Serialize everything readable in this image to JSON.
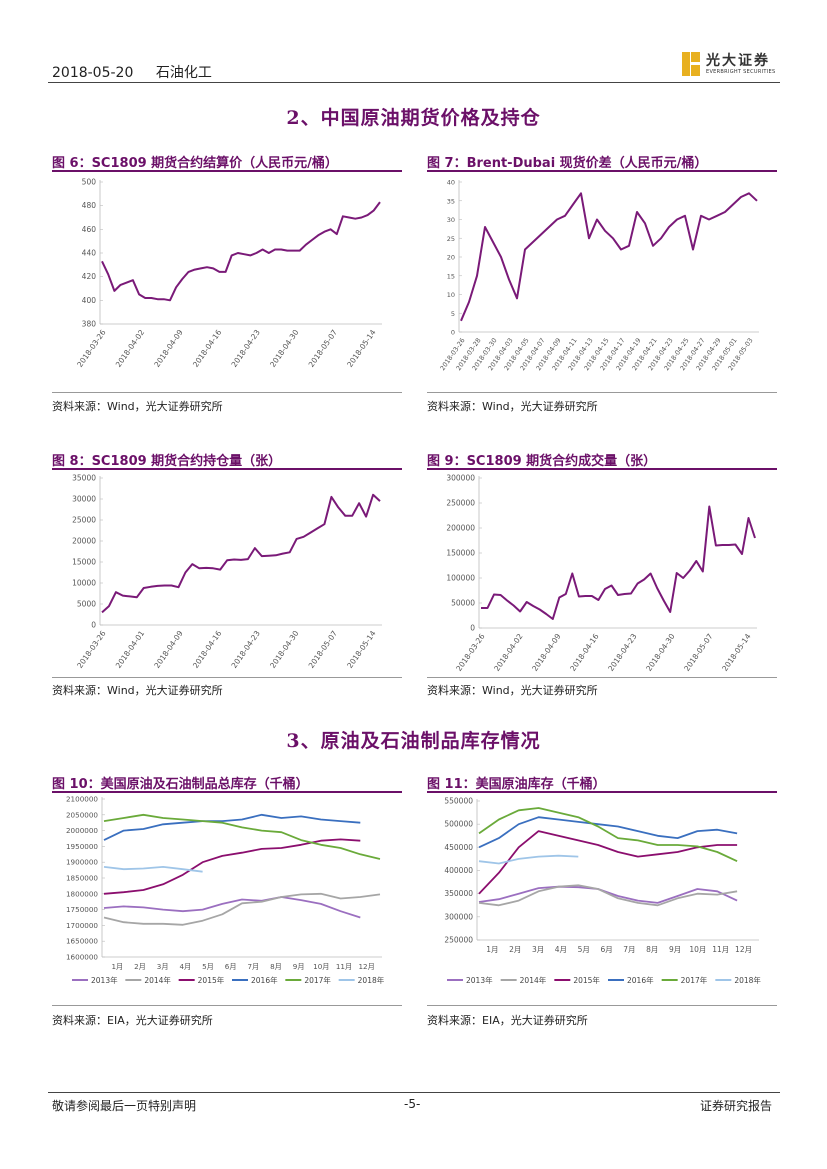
{
  "header": {
    "date": "2018-05-20",
    "sector": "石油化工",
    "brand_cn": "光大证券",
    "brand_en": "EVERBRIGHT SECURITIES"
  },
  "sections": {
    "s2": "2、中国原油期货价格及持仓",
    "s3": "3、原油及石油制品库存情况"
  },
  "figures": {
    "f6": {
      "title": "图 6：SC1809 期货合约结算价（人民币元/桶）",
      "source": "资料来源：Wind，光大证券研究所"
    },
    "f7": {
      "title": "图 7：Brent-Dubai 现货价差（人民币元/桶）",
      "source": "资料来源：Wind，光大证券研究所"
    },
    "f8": {
      "title": "图 8：SC1809 期货合约持仓量（张）",
      "source": "资料来源：Wind，光大证券研究所"
    },
    "f9": {
      "title": "图 9：SC1809 期货合约成交量（张）",
      "source": "资料来源：Wind，光大证券研究所"
    },
    "f10": {
      "title": "图 10：美国原油及石油制品总库存（千桶）",
      "source": "资料来源：EIA，光大证券研究所"
    },
    "f11": {
      "title": "图 11：美国原油库存（千桶）",
      "source": "资料来源：EIA，光大证券研究所"
    }
  },
  "footer": {
    "left": "敬请参阅最后一页特别声明",
    "center": "-5-",
    "right": "证券研究报告"
  },
  "colors": {
    "purple": "#7a1a78",
    "accent": "#6b1068"
  },
  "chart_data": [
    {
      "id": "f6",
      "type": "line",
      "title": "SC1809 期货合约结算价（人民币元/桶）",
      "y_ticks": [
        "380",
        "400",
        "420",
        "440",
        "460",
        "480",
        "500"
      ],
      "ylim": [
        380,
        500
      ],
      "x_ticks": [
        "2018-03-26",
        "2018-04-02",
        "2018-04-09",
        "2018-04-16",
        "2018-04-23",
        "2018-04-30",
        "2018-05-07",
        "2018-05-14"
      ],
      "series": [
        {
          "name": "结算价",
          "color": "#7a1a78",
          "values": [
            433,
            422,
            408,
            413,
            415,
            417,
            405,
            402,
            402,
            401,
            401,
            400,
            411,
            418,
            424,
            426,
            427,
            428,
            427,
            424,
            424,
            438,
            440,
            439,
            438,
            440,
            443,
            440,
            443,
            443,
            442,
            442,
            442,
            447,
            451,
            455,
            458,
            460,
            456,
            471,
            470,
            469,
            470,
            472,
            476,
            483
          ]
        }
      ]
    },
    {
      "id": "f7",
      "type": "line",
      "title": "Brent-Dubai 现货价差（人民币元/桶）",
      "y_ticks": [
        "0",
        "5",
        "10",
        "15",
        "20",
        "25",
        "30",
        "35",
        "40"
      ],
      "ylim": [
        0,
        40
      ],
      "x_ticks": [
        "2018-03-26",
        "2018-03-28",
        "2018-03-30",
        "2018-04-03",
        "2018-04-05",
        "2018-04-07",
        "2018-04-09",
        "2018-04-11",
        "2018-04-13",
        "2018-04-15",
        "2018-04-17",
        "2018-04-19",
        "2018-04-21",
        "2018-04-23",
        "2018-04-25",
        "2018-04-27",
        "2018-04-29",
        "2018-05-01",
        "2018-05-03"
      ],
      "series": [
        {
          "name": "价差",
          "color": "#7a1a78",
          "values": [
            3,
            8,
            15,
            28,
            24,
            20,
            14,
            9,
            22,
            24,
            26,
            28,
            30,
            31,
            34,
            37,
            25,
            30,
            27,
            25,
            22,
            23,
            32,
            29,
            23,
            25,
            28,
            30,
            31,
            22,
            31,
            30,
            31,
            32,
            34,
            36,
            37,
            35
          ]
        }
      ]
    },
    {
      "id": "f8",
      "type": "line",
      "title": "SC1809 期货合约持仓量（张）",
      "y_ticks": [
        "0",
        "5000",
        "10000",
        "15000",
        "20000",
        "25000",
        "30000",
        "35000"
      ],
      "ylim": [
        0,
        35000
      ],
      "x_ticks": [
        "2018-03-26",
        "2018-04-01",
        "2018-04-09",
        "2018-04-16",
        "2018-04-23",
        "2018-04-30",
        "2018-05-07",
        "2018-05-14"
      ],
      "series": [
        {
          "name": "持仓量",
          "color": "#7a1a78",
          "values": [
            3000,
            4500,
            7800,
            7000,
            6800,
            6600,
            8800,
            9100,
            9300,
            9400,
            9400,
            9000,
            12500,
            14500,
            13500,
            13600,
            13500,
            13200,
            15400,
            15600,
            15500,
            15700,
            18300,
            16400,
            16500,
            16600,
            17000,
            17300,
            20500,
            21000,
            22000,
            23000,
            24000,
            30500,
            28000,
            26000,
            26000,
            29000,
            25800,
            31000,
            29500
          ]
        }
      ]
    },
    {
      "id": "f9",
      "type": "line",
      "title": "SC1809 期货合约成交量（张）",
      "y_ticks": [
        "0",
        "50000",
        "100000",
        "150000",
        "200000",
        "250000",
        "300000"
      ],
      "ylim": [
        0,
        300000
      ],
      "x_ticks": [
        "2018-03-26",
        "2018-04-02",
        "2018-04-09",
        "2018-04-16",
        "2018-04-23",
        "2018-04-30",
        "2018-05-07",
        "2018-05-14"
      ],
      "series": [
        {
          "name": "成交量",
          "color": "#7a1a78",
          "values": [
            40000,
            40000,
            67000,
            66000,
            55000,
            45000,
            33000,
            52000,
            44000,
            37000,
            28000,
            18000,
            61000,
            68000,
            109000,
            63000,
            64000,
            64000,
            56000,
            78000,
            85000,
            66000,
            68000,
            69000,
            89000,
            97000,
            109000,
            80000,
            55000,
            32000,
            110000,
            100000,
            115000,
            134000,
            113000,
            243000,
            165000,
            166000,
            166000,
            167000,
            148000,
            220000,
            180000
          ]
        }
      ]
    },
    {
      "id": "f10",
      "type": "line",
      "title": "美国原油及石油制品总库存（千桶）",
      "y_ticks": [
        "1600000",
        "1650000",
        "1700000",
        "1750000",
        "1800000",
        "1850000",
        "1900000",
        "1950000",
        "2000000",
        "2050000",
        "2100000"
      ],
      "ylim": [
        1600000,
        2100000
      ],
      "x_ticks": [
        "1月",
        "2月",
        "3月",
        "4月",
        "5月",
        "6月",
        "7月",
        "8月",
        "9月",
        "10月",
        "11月",
        "12月"
      ],
      "legend": [
        "2013年",
        "2014年",
        "2015年",
        "2016年",
        "2017年",
        "2018年"
      ],
      "series": [
        {
          "name": "2013年",
          "color": "#9b6fc0",
          "values": [
            1755000,
            1760000,
            1757000,
            1750000,
            1745000,
            1750000,
            1768000,
            1782000,
            1778000,
            1790000,
            1780000,
            1768000,
            1745000,
            1725000
          ]
        },
        {
          "name": "2014年",
          "color": "#a6a6a6",
          "values": [
            1725000,
            1710000,
            1705000,
            1705000,
            1702000,
            1715000,
            1735000,
            1770000,
            1775000,
            1790000,
            1798000,
            1800000,
            1785000,
            1790000,
            1798000
          ]
        },
        {
          "name": "2015年",
          "color": "#8b0e6e",
          "values": [
            1800000,
            1805000,
            1812000,
            1830000,
            1860000,
            1900000,
            1920000,
            1930000,
            1942000,
            1945000,
            1955000,
            1968000,
            1972000,
            1968000
          ]
        },
        {
          "name": "2016年",
          "color": "#3a6fbf",
          "values": [
            1970000,
            2000000,
            2005000,
            2020000,
            2025000,
            2030000,
            2030000,
            2035000,
            2050000,
            2040000,
            2045000,
            2035000,
            2030000,
            2025000
          ]
        },
        {
          "name": "2017年",
          "color": "#6aaa3a",
          "values": [
            2030000,
            2040000,
            2050000,
            2040000,
            2035000,
            2030000,
            2025000,
            2010000,
            2000000,
            1995000,
            1970000,
            1955000,
            1945000,
            1925000,
            1910000
          ]
        },
        {
          "name": "2018年",
          "color": "#9fc5e8",
          "values": [
            1885000,
            1878000,
            1880000,
            1885000,
            1878000,
            1870000
          ]
        }
      ]
    },
    {
      "id": "f11",
      "type": "line",
      "title": "美国原油库存（千桶）",
      "y_ticks": [
        "250000",
        "300000",
        "350000",
        "400000",
        "450000",
        "500000",
        "550000"
      ],
      "ylim": [
        250000,
        550000
      ],
      "x_ticks": [
        "1月",
        "2月",
        "3月",
        "4月",
        "5月",
        "6月",
        "7月",
        "8月",
        "9月",
        "10月",
        "11月",
        "12月"
      ],
      "legend": [
        "2013年",
        "2014年",
        "2015年",
        "2016年",
        "2017年",
        "2018年"
      ],
      "series": [
        {
          "name": "2013年",
          "color": "#9b6fc0",
          "values": [
            332000,
            338000,
            350000,
            362000,
            365000,
            364000,
            360000,
            345000,
            335000,
            330000,
            345000,
            360000,
            355000,
            335000
          ]
        },
        {
          "name": "2014年",
          "color": "#a6a6a6",
          "values": [
            330000,
            325000,
            335000,
            355000,
            365000,
            368000,
            360000,
            340000,
            330000,
            325000,
            340000,
            350000,
            348000,
            355000
          ]
        },
        {
          "name": "2015年",
          "color": "#8b0e6e",
          "values": [
            350000,
            395000,
            450000,
            485000,
            475000,
            465000,
            455000,
            440000,
            430000,
            435000,
            440000,
            450000,
            455000,
            455000
          ]
        },
        {
          "name": "2016年",
          "color": "#3a6fbf",
          "values": [
            450000,
            470000,
            500000,
            515000,
            510000,
            505000,
            500000,
            495000,
            485000,
            475000,
            470000,
            485000,
            488000,
            480000
          ]
        },
        {
          "name": "2017年",
          "color": "#6aaa3a",
          "values": [
            480000,
            510000,
            530000,
            535000,
            525000,
            515000,
            495000,
            470000,
            465000,
            455000,
            455000,
            452000,
            440000,
            420000
          ]
        },
        {
          "name": "2018年",
          "color": "#9fc5e8",
          "values": [
            420000,
            415000,
            425000,
            430000,
            432000,
            430000
          ]
        }
      ]
    }
  ]
}
